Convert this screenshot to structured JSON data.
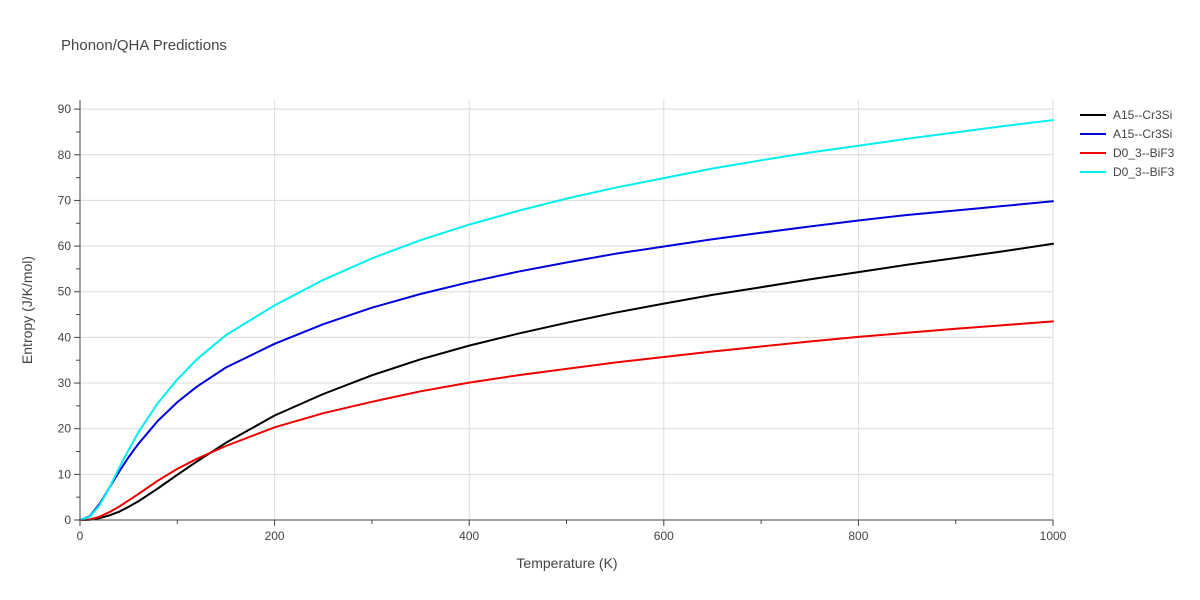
{
  "chart_data": {
    "type": "line",
    "title": "Phonon/QHA Predictions",
    "xlabel": "Temperature (K)",
    "ylabel": "Entropy (J/K/mol)",
    "xlim": [
      0,
      1000
    ],
    "ylim": [
      0,
      92
    ],
    "x_ticks": [
      0,
      200,
      400,
      600,
      800,
      1000
    ],
    "y_ticks": [
      0,
      10,
      20,
      30,
      40,
      50,
      60,
      70,
      80,
      90
    ],
    "grid": true,
    "legend_position": "top-right",
    "series": [
      {
        "name": "A15--Cr3Si",
        "color": "#000000",
        "x": [
          0,
          10,
          20,
          30,
          40,
          50,
          60,
          80,
          100,
          120,
          150,
          200,
          250,
          300,
          350,
          400,
          450,
          500,
          550,
          600,
          650,
          700,
          750,
          800,
          850,
          900,
          950,
          1000
        ],
        "y": [
          0,
          0.05,
          0.4,
          1.0,
          1.8,
          2.9,
          4.1,
          6.9,
          9.9,
          12.8,
          16.9,
          22.9,
          27.6,
          31.7,
          35.2,
          38.2,
          40.8,
          43.2,
          45.4,
          47.4,
          49.3,
          51.0,
          52.7,
          54.3,
          55.9,
          57.4,
          58.9,
          60.5
        ]
      },
      {
        "name": "A15--Cr3Si",
        "color": "#0000dd",
        "x": [
          0,
          10,
          20,
          30,
          40,
          50,
          60,
          80,
          100,
          120,
          150,
          200,
          250,
          300,
          350,
          400,
          450,
          500,
          550,
          600,
          650,
          700,
          750,
          800,
          850,
          900,
          950,
          1000
        ],
        "y": [
          0,
          0.8,
          3.5,
          7.0,
          10.5,
          13.8,
          16.7,
          21.7,
          25.8,
          29.2,
          33.4,
          38.6,
          42.9,
          46.5,
          49.5,
          52.1,
          54.4,
          56.4,
          58.3,
          59.9,
          61.5,
          62.9,
          64.3,
          65.6,
          66.8,
          67.8,
          68.8,
          69.8
        ]
      },
      {
        "name": "D0_3--BiF3",
        "color": "#ee0000",
        "x": [
          0,
          10,
          20,
          30,
          40,
          50,
          60,
          80,
          100,
          120,
          150,
          200,
          250,
          300,
          350,
          400,
          450,
          500,
          550,
          600,
          650,
          700,
          750,
          800,
          850,
          900,
          950,
          1000
        ],
        "y": [
          0,
          0.1,
          0.7,
          1.7,
          2.9,
          4.3,
          5.7,
          8.6,
          11.2,
          13.4,
          16.2,
          20.3,
          23.4,
          25.9,
          28.2,
          30.1,
          31.7,
          33.1,
          34.5,
          35.7,
          36.9,
          38.0,
          39.1,
          40.1,
          41.0,
          41.9,
          42.7,
          43.5
        ]
      },
      {
        "name": "D0_3--BiF3",
        "color": "#00f0f0",
        "x": [
          0,
          10,
          20,
          30,
          40,
          50,
          60,
          80,
          100,
          120,
          150,
          200,
          250,
          300,
          350,
          400,
          450,
          500,
          550,
          600,
          650,
          700,
          750,
          800,
          850,
          900,
          950,
          1000
        ],
        "y": [
          0,
          0.7,
          3.2,
          7.0,
          11.3,
          15.4,
          19.2,
          25.6,
          30.8,
          35.2,
          40.5,
          47.0,
          52.6,
          57.3,
          61.3,
          64.7,
          67.7,
          70.4,
          72.8,
          74.9,
          77.0,
          78.8,
          80.5,
          82.0,
          83.5,
          84.9,
          86.3,
          87.6
        ]
      }
    ]
  }
}
